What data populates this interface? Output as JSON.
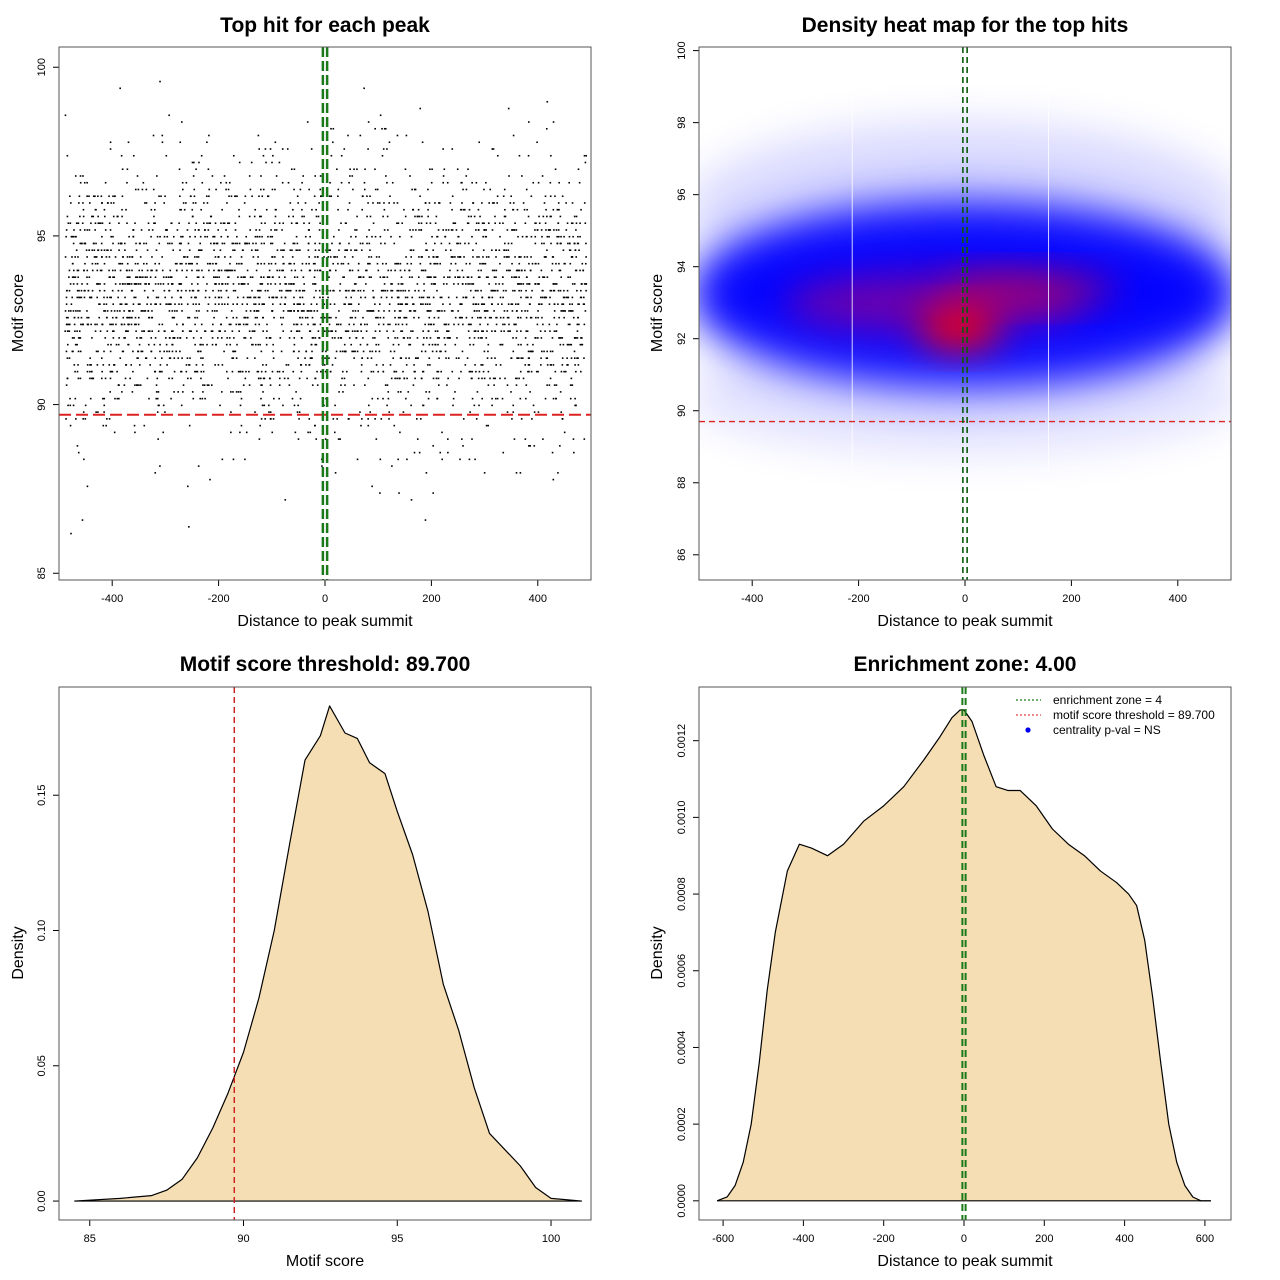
{
  "chart_data": [
    {
      "id": "p1",
      "type": "scatter",
      "title": "Top hit for each peak",
      "xlabel": "Distance to peak summit",
      "ylabel": "Motif score",
      "xlim": [
        -500,
        500
      ],
      "ylim": [
        84.8,
        100.6
      ],
      "xticks": [
        -400,
        -200,
        0,
        200,
        400
      ],
      "xtick_labels": [
        "-400",
        "-200",
        "0",
        "200",
        "400"
      ],
      "yticks": [
        85,
        90,
        95,
        100
      ],
      "ytick_labels": [
        "85",
        "90",
        "95",
        "100"
      ],
      "point_distribution": {
        "x_range": [
          -490,
          490
        ],
        "y_center": 93.2,
        "y_sd": 2.0,
        "n": 3200
      },
      "threshold_y": 89.7,
      "enrichment_x": [
        -4,
        4
      ],
      "colors": {
        "points": "#000000",
        "threshold": "#dd2222",
        "enrichment": "#1a7a1a"
      }
    },
    {
      "id": "p2",
      "type": "heatmap",
      "title": "Density heat map for the top hits",
      "xlabel": "Distance to peak summit",
      "ylabel": "Motif score",
      "xlim": [
        -500,
        500
      ],
      "ylim": [
        85.3,
        100.1
      ],
      "xticks": [
        -400,
        -200,
        0,
        200,
        400
      ],
      "xtick_labels": [
        "-400",
        "-200",
        "0",
        "200",
        "400"
      ],
      "yticks": [
        86,
        88,
        90,
        92,
        94,
        96,
        98,
        100
      ],
      "ytick_labels": [
        "86",
        "88",
        "90",
        "92",
        "94",
        "96",
        "98",
        "100"
      ],
      "density_peak": {
        "x": -10,
        "y": 92.3
      },
      "threshold_y": 89.7,
      "enrichment_x": [
        -4,
        4
      ],
      "colors": {
        "low": "#ffffff",
        "mid": "#0000ff",
        "high": "#ff0000",
        "threshold": "#dd2222",
        "enrichment": "#0b5a0b"
      }
    },
    {
      "id": "p3",
      "type": "area",
      "title": "Motif score threshold: 89.700",
      "xlabel": "Motif score",
      "ylabel": "Density",
      "xlim": [
        84.0,
        101.3
      ],
      "ylim": [
        -0.007,
        0.19
      ],
      "xticks": [
        85,
        90,
        95,
        100
      ],
      "xtick_labels": [
        "85",
        "90",
        "95",
        "100"
      ],
      "yticks": [
        0.0,
        0.05,
        0.1,
        0.15
      ],
      "ytick_labels": [
        "0.00",
        "0.05",
        "0.10",
        "0.15"
      ],
      "x": [
        84.5,
        86,
        87,
        87.5,
        88,
        88.5,
        89,
        89.5,
        90,
        90.5,
        91,
        91.5,
        92,
        92.5,
        92.8,
        93.3,
        93.7,
        94.1,
        94.6,
        95.0,
        95.5,
        96.0,
        96.5,
        97.0,
        97.5,
        98.0,
        98.5,
        99.0,
        99.5,
        100,
        101
      ],
      "y": [
        0.0,
        0.001,
        0.002,
        0.004,
        0.008,
        0.016,
        0.027,
        0.04,
        0.055,
        0.075,
        0.1,
        0.132,
        0.163,
        0.172,
        0.183,
        0.173,
        0.171,
        0.162,
        0.158,
        0.144,
        0.128,
        0.107,
        0.08,
        0.063,
        0.042,
        0.025,
        0.019,
        0.013,
        0.005,
        0.001,
        0.0
      ],
      "threshold_x": 89.7,
      "colors": {
        "fill": "#f5deb3",
        "line": "#000000",
        "threshold": "#cc2222"
      }
    },
    {
      "id": "p4",
      "type": "area",
      "title": "Enrichment zone: 4.00",
      "xlabel": "Distance to peak summit",
      "ylabel": "Density",
      "xlim": [
        -660,
        665
      ],
      "ylim": [
        -5e-05,
        0.00134
      ],
      "xticks": [
        -600,
        -400,
        -200,
        0,
        200,
        400,
        600
      ],
      "xtick_labels": [
        "-600",
        "-400",
        "-200",
        "0",
        "200",
        "400",
        "600"
      ],
      "yticks": [
        0.0,
        0.0002,
        0.0004,
        0.0006,
        0.0008,
        0.001,
        0.0012
      ],
      "ytick_labels": [
        "0.0000",
        "0.0002",
        "0.0004",
        "0.0006",
        "0.0008",
        "0.0010",
        "0.0012"
      ],
      "x": [
        -615,
        -590,
        -570,
        -550,
        -530,
        -510,
        -490,
        -470,
        -440,
        -410,
        -380,
        -340,
        -300,
        -250,
        -200,
        -150,
        -100,
        -60,
        -30,
        -10,
        0,
        20,
        50,
        80,
        110,
        140,
        180,
        220,
        260,
        300,
        340,
        380,
        410,
        430,
        450,
        470,
        490,
        510,
        530,
        550,
        570,
        590,
        615
      ],
      "y": [
        0.0,
        1e-05,
        4e-05,
        0.0001,
        0.0002,
        0.00036,
        0.00055,
        0.0007,
        0.00086,
        0.00093,
        0.00092,
        0.0009,
        0.00093,
        0.00099,
        0.00103,
        0.00108,
        0.00115,
        0.00121,
        0.00126,
        0.00128,
        0.00128,
        0.00125,
        0.00116,
        0.00108,
        0.00107,
        0.00107,
        0.00103,
        0.00097,
        0.00093,
        0.0009,
        0.00086,
        0.00083,
        0.0008,
        0.00077,
        0.00068,
        0.00053,
        0.00036,
        0.0002,
        0.0001,
        4e-05,
        1e-05,
        0.0,
        0.0
      ],
      "enrichment_x": [
        -4,
        4
      ],
      "legend": [
        {
          "label": "enrichment zone = 4",
          "style": "dotted-line",
          "color": "#1a7a1a"
        },
        {
          "label": "motif score threshold = 89.700",
          "style": "dotted-line",
          "color": "#dd4444"
        },
        {
          "label": "centrality p-val = NS",
          "style": "dot",
          "color": "#0000ee"
        }
      ],
      "legend_position": "top-right",
      "colors": {
        "fill": "#f5deb3",
        "line": "#000000",
        "enrichment": "#1a7a1a"
      }
    }
  ]
}
